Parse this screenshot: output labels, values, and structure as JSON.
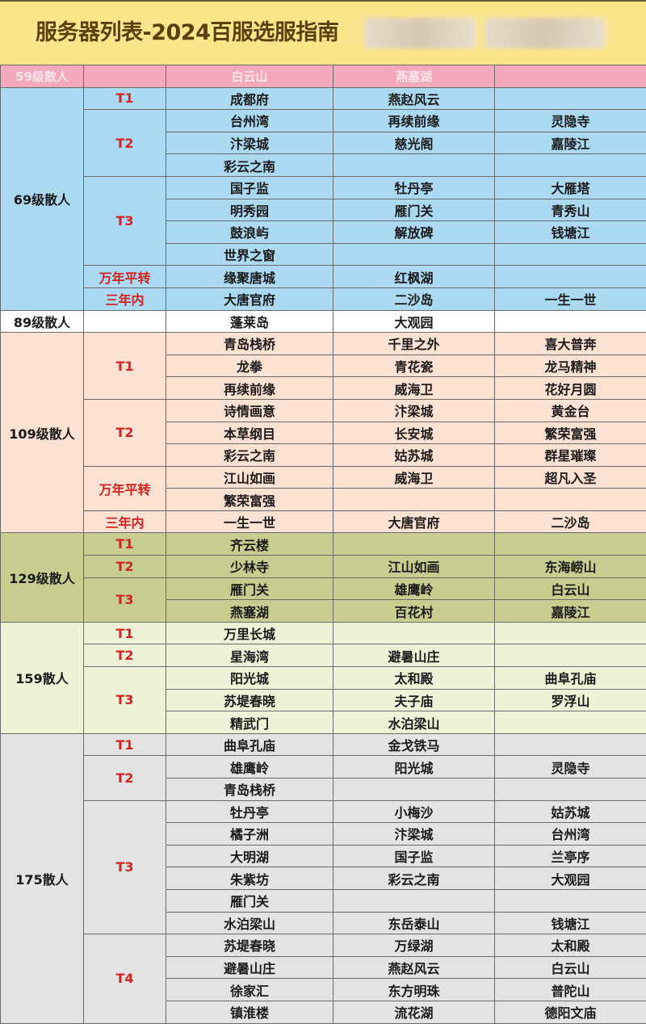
{
  "title": "服务器列表-2024百服选服指南",
  "colors": {
    "title_bg": "#fbe68c",
    "header_bg": "#f5a8bb",
    "tier_text": "#d42222"
  },
  "header": [
    "59级散人",
    "",
    "白云山",
    "燕塞湖",
    ""
  ],
  "groups": [
    {
      "label": "69级散人",
      "tiers": [
        {
          "label": "T1",
          "rows": [
            [
              "成都府",
              "燕赵风云",
              ""
            ]
          ]
        },
        {
          "label": "T2",
          "rows": [
            [
              "台州湾",
              "再续前缘",
              "灵隐寺"
            ],
            [
              "汴梁城",
              "慈光阁",
              "嘉陵江"
            ],
            [
              "彩云之南",
              "",
              ""
            ]
          ]
        },
        {
          "label": "T3",
          "rows": [
            [
              "国子监",
              "牡丹亭",
              "大雁塔"
            ],
            [
              "明秀园",
              "雁门关",
              "青秀山"
            ],
            [
              "鼓浪屿",
              "解放碑",
              "钱塘江"
            ],
            [
              "世界之窗",
              "",
              ""
            ]
          ]
        },
        {
          "label": "万年平转",
          "rows": [
            [
              "缘聚唐城",
              "红枫湖",
              ""
            ]
          ]
        },
        {
          "label": "三年内",
          "rows": [
            [
              "大唐官府",
              "二沙岛",
              "一生一世"
            ]
          ]
        }
      ]
    },
    {
      "label": "89级散人",
      "tiers": [
        {
          "label": "",
          "rows": [
            [
              "蓬莱岛",
              "大观园",
              ""
            ]
          ]
        }
      ]
    },
    {
      "label": "109级散人",
      "tiers": [
        {
          "label": "T1",
          "rows": [
            [
              "青岛栈桥",
              "千里之外",
              "喜大普奔"
            ],
            [
              "龙拳",
              "青花瓷",
              "龙马精神"
            ],
            [
              "再续前缘",
              "威海卫",
              "花好月圆"
            ]
          ]
        },
        {
          "label": "T2",
          "rows": [
            [
              "诗情画意",
              "汴梁城",
              "黄金台"
            ],
            [
              "本草纲目",
              "长安城",
              "繁荣富强"
            ],
            [
              "彩云之南",
              "姑苏城",
              "群星璀璨"
            ]
          ]
        },
        {
          "label": "万年平转",
          "rows": [
            [
              "江山如画",
              "威海卫",
              "超凡入圣"
            ],
            [
              "繁荣富强",
              "",
              ""
            ]
          ]
        },
        {
          "label": "三年内",
          "rows": [
            [
              "一生一世",
              "大唐官府",
              "二沙岛"
            ]
          ]
        }
      ]
    },
    {
      "label": "129级散人",
      "tiers": [
        {
          "label": "T1",
          "rows": [
            [
              "齐云楼",
              "",
              ""
            ]
          ]
        },
        {
          "label": "T2",
          "rows": [
            [
              "少林寺",
              "江山如画",
              "东海崂山"
            ]
          ]
        },
        {
          "label": "T3",
          "rows": [
            [
              "雁门关",
              "雄鹰岭",
              "白云山"
            ],
            [
              "燕塞湖",
              "百花村",
              "嘉陵江"
            ]
          ]
        }
      ]
    },
    {
      "label": "159散人",
      "tiers": [
        {
          "label": "T1",
          "rows": [
            [
              "万里长城",
              "",
              ""
            ]
          ]
        },
        {
          "label": "T2",
          "rows": [
            [
              "星海湾",
              "避暑山庄",
              ""
            ]
          ]
        },
        {
          "label": "T3",
          "rows": [
            [
              "阳光城",
              "太和殿",
              "曲阜孔庙"
            ],
            [
              "苏堤春晓",
              "夫子庙",
              "罗浮山"
            ],
            [
              "精武门",
              "水泊梁山",
              ""
            ]
          ]
        }
      ]
    },
    {
      "label": "175散人",
      "tiers": [
        {
          "label": "T1",
          "rows": [
            [
              "曲阜孔庙",
              "金戈铁马",
              ""
            ]
          ]
        },
        {
          "label": "T2",
          "rows": [
            [
              "雄鹰岭",
              "阳光城",
              "灵隐寺"
            ],
            [
              "青岛栈桥",
              "",
              ""
            ]
          ]
        },
        {
          "label": "T3",
          "rows": [
            [
              "牡丹亭",
              "小梅沙",
              "姑苏城"
            ],
            [
              "橘子洲",
              "汴梁城",
              "台州湾"
            ],
            [
              "大明湖",
              "国子监",
              "兰亭序"
            ],
            [
              "朱紫坊",
              "彩云之南",
              "大观园"
            ],
            [
              "雁门关",
              "",
              ""
            ],
            [
              "水泊梁山",
              "东岳泰山",
              "钱塘江"
            ]
          ]
        },
        {
          "label": "T4",
          "rows": [
            [
              "苏堤春晓",
              "万绿湖",
              "太和殿"
            ],
            [
              "避暑山庄",
              "燕赵风云",
              "白云山"
            ],
            [
              "徐家汇",
              "东方明珠",
              "普陀山"
            ],
            [
              "镇淮楼",
              "流花湖",
              "德阳文庙"
            ]
          ]
        }
      ]
    }
  ]
}
